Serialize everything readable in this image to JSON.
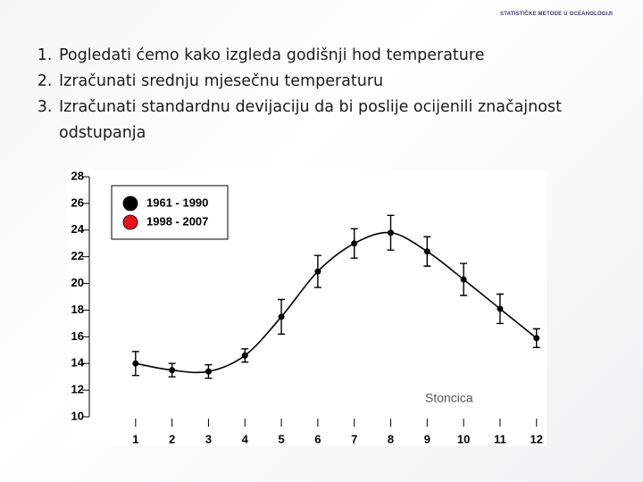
{
  "header": "STATISTIČKE METODE U OCEANOLOGIJI",
  "list": [
    "Pogledati ćemo kako izgleda  godišnji hod temperature",
    "Izračunati srednju mjesečnu temperaturu",
    "Izračunati standardnu devijaciju da bi poslije ocijenili značajnost odstupanja"
  ],
  "chart_data": {
    "type": "line",
    "x": [
      1,
      2,
      3,
      4,
      5,
      6,
      7,
      8,
      9,
      10,
      11,
      12
    ],
    "series": [
      {
        "name": "1961 - 1990",
        "color": "#000000",
        "values": [
          14.0,
          13.5,
          13.4,
          14.6,
          17.5,
          20.9,
          23.0,
          23.8,
          22.4,
          20.3,
          18.1,
          15.9
        ],
        "errors": [
          0.9,
          0.5,
          0.5,
          0.5,
          1.3,
          1.2,
          1.1,
          1.3,
          1.1,
          1.2,
          1.1,
          0.7
        ]
      },
      {
        "name": "1998 - 2007",
        "color": "#e8141c",
        "values": [
          null,
          null,
          null,
          null,
          null,
          null,
          null,
          null,
          null,
          null,
          null,
          null
        ]
      }
    ],
    "annotation": "Stoncica",
    "xlim": [
      0,
      12.3
    ],
    "xticks": [
      1,
      2,
      3,
      4,
      5,
      6,
      7,
      8,
      9,
      10,
      11,
      12
    ],
    "ylim": [
      10,
      28
    ],
    "yticks": [
      10,
      12,
      14,
      16,
      18,
      20,
      22,
      24,
      26,
      28
    ],
    "legend": "upper left"
  }
}
